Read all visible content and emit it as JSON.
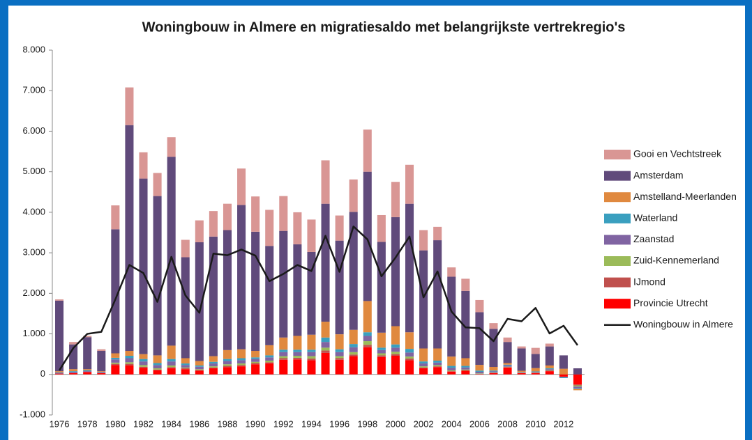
{
  "chart_data": {
    "type": "bar",
    "stacked": true,
    "title": "Woningbouw in Almere en migratiesaldo met belangrijkste vertrekregio's",
    "categories": [
      1976,
      null,
      1978,
      null,
      1980,
      null,
      1982,
      null,
      1984,
      null,
      1986,
      null,
      1988,
      null,
      1990,
      null,
      1992,
      null,
      1994,
      null,
      1996,
      null,
      1998,
      null,
      2000,
      null,
      2002,
      null,
      2004,
      null,
      2006,
      null,
      2008,
      null,
      2010,
      null,
      2012,
      null
    ],
    "ylim": [
      -1000,
      8000
    ],
    "yticks": [
      {
        "value": -1000,
        "label": "-1.000"
      },
      0,
      {
        "value": 1000,
        "label": "1.000"
      },
      {
        "value": 2000,
        "label": "2.000"
      },
      {
        "value": 3000,
        "label": "3.000"
      },
      {
        "value": 4000,
        "label": "4.000"
      },
      {
        "value": 5000,
        "label": "5.000"
      },
      {
        "value": 6000,
        "label": "6.000"
      },
      {
        "value": 7000,
        "label": "7.000"
      },
      {
        "value": 8000,
        "label": "8.000"
      }
    ],
    "grid": false,
    "legend": "right",
    "series": [
      {
        "name": "Gooi en Vechtstreek",
        "color": "#d99694",
        "values": [
          30,
          60,
          30,
          40,
          590,
          930,
          650,
          570,
          480,
          430,
          540,
          630,
          650,
          900,
          870,
          890,
          860,
          790,
          800,
          1070,
          620,
          800,
          1040,
          660,
          870,
          960,
          500,
          330,
          230,
          300,
          300,
          140,
          110,
          50,
          150,
          70,
          0,
          0
        ]
      },
      {
        "name": "Amsterdam",
        "color": "#604a7b",
        "values": [
          1740,
          610,
          790,
          500,
          3060,
          5570,
          4330,
          3930,
          4660,
          2490,
          2930,
          2950,
          2960,
          3560,
          2940,
          2450,
          2630,
          2260,
          2040,
          2910,
          2310,
          2910,
          3190,
          2240,
          2690,
          3170,
          2420,
          2670,
          1970,
          1660,
          1300,
          940,
          520,
          550,
          350,
          470,
          330,
          150
        ]
      },
      {
        "name": "Amstelland-Meerlanden",
        "color": "#e0893f",
        "values": [
          30,
          50,
          30,
          20,
          110,
          120,
          120,
          190,
          330,
          130,
          110,
          140,
          220,
          220,
          160,
          250,
          300,
          340,
          370,
          390,
          370,
          350,
          770,
          370,
          450,
          410,
          320,
          300,
          230,
          190,
          140,
          90,
          40,
          30,
          80,
          70,
          140,
          -30
        ]
      },
      {
        "name": "Waterland",
        "color": "#3a9fbf",
        "values": [
          10,
          20,
          20,
          10,
          40,
          60,
          60,
          50,
          60,
          40,
          30,
          40,
          50,
          50,
          40,
          50,
          60,
          60,
          60,
          110,
          70,
          80,
          90,
          60,
          80,
          90,
          50,
          50,
          50,
          40,
          30,
          20,
          20,
          10,
          10,
          20,
          -20,
          -20
        ]
      },
      {
        "name": "Zaanstad",
        "color": "#8064a2",
        "values": [
          20,
          30,
          20,
          20,
          80,
          100,
          90,
          80,
          100,
          60,
          60,
          70,
          80,
          80,
          70,
          80,
          100,
          90,
          100,
          140,
          100,
          120,
          130,
          80,
          100,
          100,
          70,
          60,
          60,
          50,
          40,
          30,
          30,
          10,
          20,
          30,
          -10,
          -40
        ]
      },
      {
        "name": "Zuid-Kennemerland",
        "color": "#9bbb59",
        "values": [
          0,
          0,
          0,
          0,
          30,
          40,
          40,
          30,
          40,
          20,
          20,
          30,
          40,
          40,
          30,
          40,
          50,
          50,
          60,
          70,
          50,
          60,
          90,
          50,
          60,
          50,
          30,
          30,
          20,
          20,
          10,
          10,
          10,
          5,
          10,
          10,
          0,
          -30
        ]
      },
      {
        "name": "IJmond",
        "color": "#c0504d",
        "values": [
          0,
          0,
          0,
          0,
          30,
          40,
          30,
          20,
          30,
          20,
          20,
          20,
          30,
          30,
          30,
          30,
          40,
          40,
          40,
          60,
          40,
          40,
          60,
          40,
          40,
          40,
          20,
          20,
          10,
          10,
          5,
          5,
          10,
          5,
          5,
          10,
          0,
          -20
        ]
      },
      {
        "name": "Provincie Utrecht",
        "color": "#ff0000",
        "values": [
          20,
          30,
          60,
          30,
          230,
          220,
          160,
          100,
          150,
          130,
          90,
          150,
          180,
          200,
          250,
          270,
          360,
          370,
          350,
          530,
          360,
          450,
          670,
          430,
          460,
          350,
          150,
          180,
          70,
          90,
          10,
          30,
          170,
          30,
          30,
          80,
          -60,
          -250
        ]
      },
      {
        "name": "Woningbouw in Almere",
        "type": "line",
        "color": "#1a1a1a",
        "values": [
          100,
          650,
          1000,
          1050,
          1850,
          2700,
          2500,
          1790,
          2900,
          1950,
          1520,
          2980,
          2940,
          3080,
          2930,
          2300,
          2480,
          2700,
          2550,
          3420,
          2530,
          3650,
          3330,
          2420,
          2880,
          3400,
          1900,
          2540,
          1550,
          1160,
          1140,
          820,
          1370,
          1310,
          1640,
          1010,
          1200,
          720
        ]
      }
    ]
  }
}
